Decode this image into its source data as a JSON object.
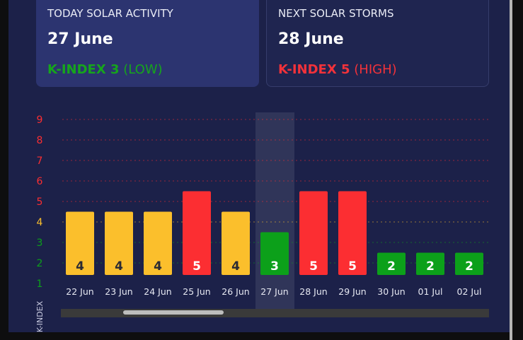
{
  "cards": {
    "today": {
      "title": "TODAY SOLAR ACTIVITY",
      "date": "27 June",
      "kindex_label": "K-INDEX 3",
      "level": "(LOW)",
      "color": "#16a51c"
    },
    "next": {
      "title": "NEXT SOLAR STORMS",
      "date": "28 June",
      "kindex_label": "K-INDEX 5",
      "level": "(HIGH)",
      "color": "#f2323a"
    }
  },
  "colors": {
    "low": "#0ca01a",
    "moderate": "#fbbf2c",
    "high": "#fc2e32"
  },
  "chart_data": {
    "type": "bar",
    "categories": [
      "22 Jun",
      "23 Jun",
      "24 Jun",
      "25 Jun",
      "26 Jun",
      "27 Jun",
      "28 Jun",
      "29 Jun",
      "30 Jun",
      "01 Jul",
      "02 Jul"
    ],
    "values": [
      4,
      4,
      4,
      5,
      4,
      3,
      5,
      5,
      2,
      2,
      2
    ],
    "ylabel": "K-INDEX",
    "ylim": [
      1,
      9
    ],
    "yticks": [
      1,
      2,
      3,
      4,
      5,
      6,
      7,
      8,
      9
    ],
    "highlighted_category": "27 Jun",
    "grid": true
  }
}
